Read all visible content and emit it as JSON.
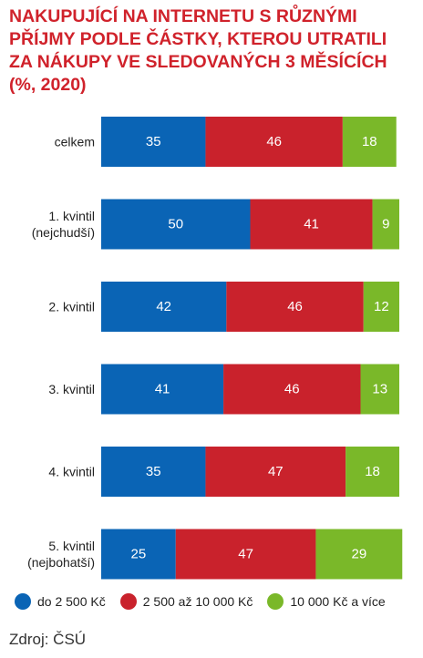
{
  "title_lines": [
    "NAKUPUJÍCÍ NA INTERNETU S RŮZNÝMI",
    "PŘÍJMY PODLE ČÁSTKY, KTEROU UTRATILI",
    "ZA NÁKUPY VE SLEDOVANÝCH 3 MĚSÍCÍCH",
    "(%, 2020)"
  ],
  "source": "Zdroj: ČSÚ",
  "chart_data": {
    "type": "bar",
    "orientation": "horizontal",
    "stacked": true,
    "categories": [
      [
        "celkem"
      ],
      [
        "1. kvintil",
        "(nejchudší)"
      ],
      [
        "2. kvintil"
      ],
      [
        "3. kvintil"
      ],
      [
        "4. kvintil"
      ],
      [
        "5. kvintil",
        "(nejbohatší)"
      ]
    ],
    "series": [
      {
        "name": "do 2 500 Kč",
        "color": "#0a64b5",
        "values": [
          35,
          50,
          42,
          41,
          35,
          25
        ]
      },
      {
        "name": "2 500 až 10 000 Kč",
        "color": "#c9222c",
        "values": [
          46,
          41,
          46,
          46,
          47,
          47
        ]
      },
      {
        "name": "10 000 Kč a více",
        "color": "#7ab829",
        "values": [
          18,
          9,
          12,
          13,
          18,
          29
        ]
      }
    ],
    "xlim": [
      0,
      100
    ],
    "legend": "bottom",
    "grid": false
  }
}
